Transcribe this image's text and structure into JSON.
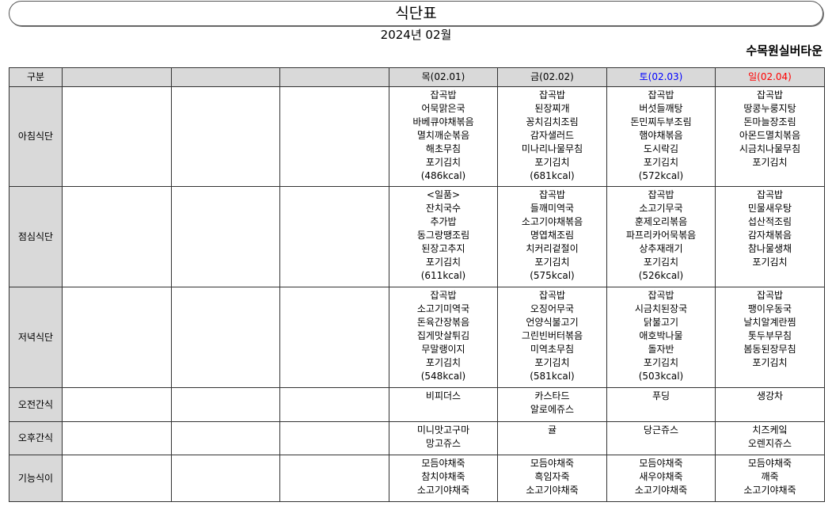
{
  "title": "식단표",
  "date": "2024년 02월",
  "facility": "수목원실버타운",
  "header": {
    "category": "구분",
    "days": [
      {
        "label": "목(02.01)",
        "color": "#000000"
      },
      {
        "label": "금(02.02)",
        "color": "#000000"
      },
      {
        "label": "토(02.03)",
        "color": "#0000ff"
      },
      {
        "label": "일(02.04)",
        "color": "#ff0000"
      }
    ]
  },
  "rows": [
    {
      "label": "아침식단",
      "cells": [
        [
          "잡곡밥",
          "어묵맑은국",
          "바베큐야채볶음",
          "멸치깨순볶음",
          "해초무침",
          "포기김치",
          "(486kcal)"
        ],
        [
          "잡곡밥",
          "된장찌개",
          "꽁치김치조림",
          "감자샐러드",
          "미나리나물무침",
          "포기김치",
          "(681kcal)"
        ],
        [
          "잡곡밥",
          "버섯들깨탕",
          "돈민찌두부조림",
          "햄야채볶음",
          "도시락김",
          "포기김치",
          "(572kcal)"
        ],
        [
          "잡곡밥",
          "땅콩누룽지탕",
          "돈마늘장조림",
          "아몬드멸치볶음",
          "시금치나물무침",
          "포기김치"
        ]
      ]
    },
    {
      "label": "점심식단",
      "cells": [
        [
          "<일품>",
          "잔치국수",
          "추가밥",
          "동그랑땡조림",
          "된장고추지",
          "포기김치",
          "(611kcal)"
        ],
        [
          "잡곡밥",
          "들깨미역국",
          "소고기야채볶음",
          "명엽채조림",
          "치커리겉절이",
          "포기김치",
          "(575kcal)"
        ],
        [
          "잡곡밥",
          "소고기무국",
          "훈제오리볶음",
          "파프리카어묵볶음",
          "상추재래기",
          "포기김치",
          "(526kcal)"
        ],
        [
          "잡곡밥",
          "민물새우탕",
          "섭산적조림",
          "감자채볶음",
          "참나물생채",
          "포기김치"
        ]
      ]
    },
    {
      "label": "저녁식단",
      "cells": [
        [
          "잡곡밥",
          "소고기미역국",
          "돈육간장볶음",
          "집게맛살튀김",
          "무말랭이지",
          "포기김치",
          "(548kcal)"
        ],
        [
          "잡곡밥",
          "오징어무국",
          "언양식불고기",
          "그린빈버터볶음",
          "미역초무침",
          "포기김치",
          "(581kcal)"
        ],
        [
          "잡곡밥",
          "시금치된장국",
          "닭불고기",
          "애호박나물",
          "돌자반",
          "포기김치",
          "(503kcal)"
        ],
        [
          "잡곡밥",
          "팽이우동국",
          "날치알계란찜",
          "톳두부무침",
          "봄동된장무침",
          "포기김치"
        ]
      ]
    },
    {
      "label": "오전간식",
      "cells": [
        [
          "비피더스"
        ],
        [
          "카스타드",
          "알로에쥬스"
        ],
        [
          "푸딩"
        ],
        [
          "생강차"
        ]
      ]
    },
    {
      "label": "오후간식",
      "cells": [
        [
          "미니맛고구마",
          "망고쥬스"
        ],
        [
          "귤"
        ],
        [
          "당근쥬스"
        ],
        [
          "치즈케잌",
          "오렌지쥬스"
        ]
      ]
    },
    {
      "label": "기능식이",
      "cells": [
        [
          "모듬야채죽",
          "참치야채죽",
          "소고기야채죽"
        ],
        [
          "모듬야채죽",
          "흑임자죽",
          "소고기야채죽"
        ],
        [
          "모듬야채죽",
          "새우야채죽",
          "소고기야채죽"
        ],
        [
          "모듬야채죽",
          "깨죽",
          "소고기야채죽"
        ]
      ]
    }
  ]
}
